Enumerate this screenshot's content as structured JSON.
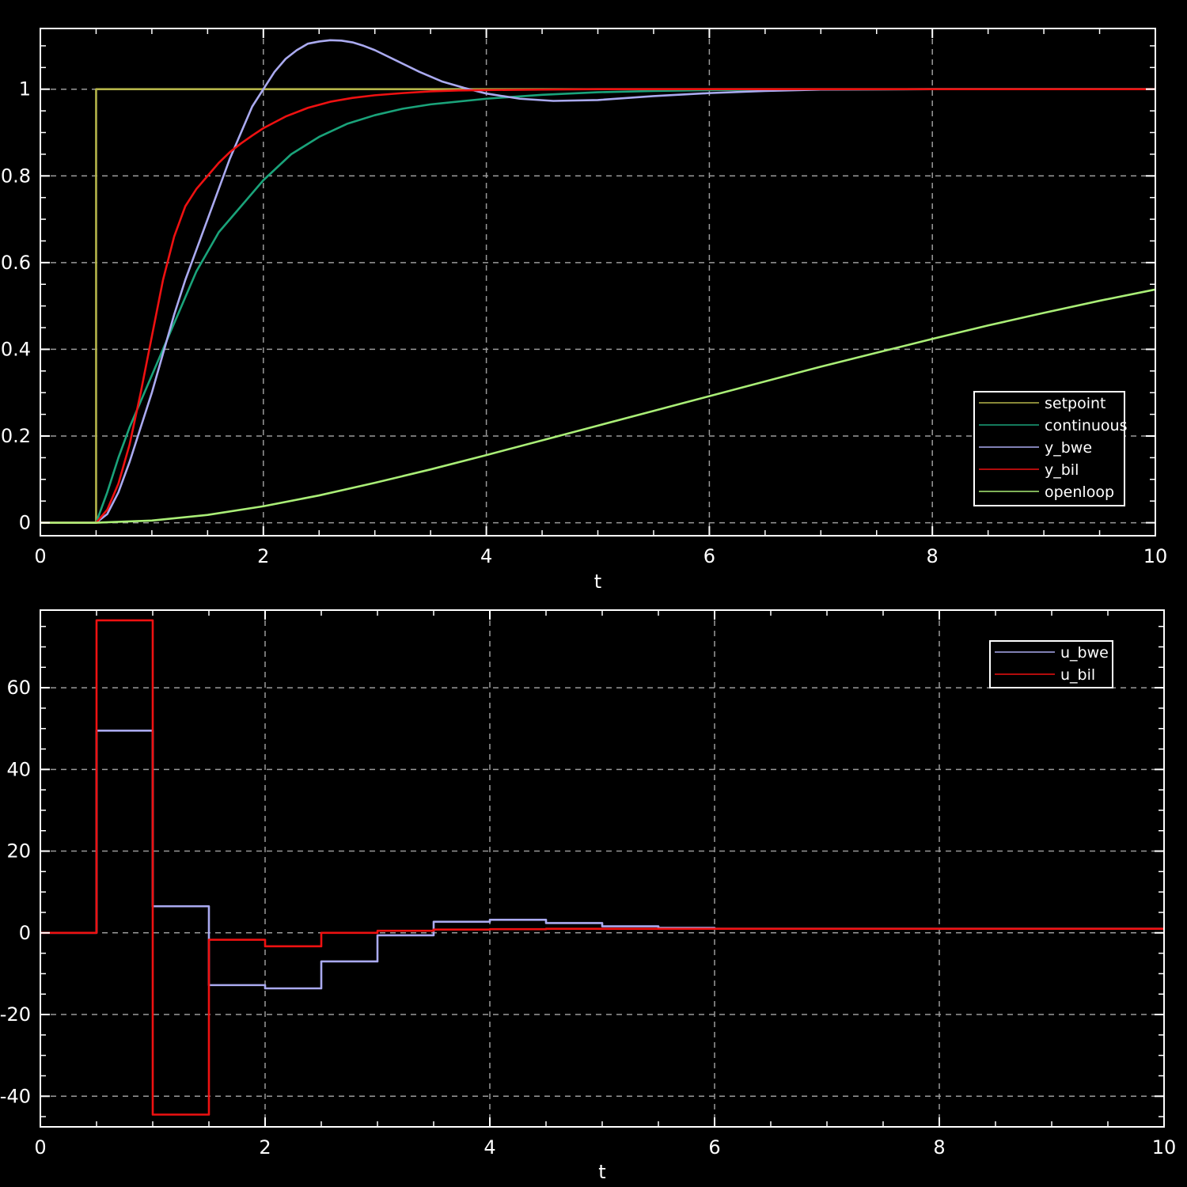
{
  "chart_data": [
    {
      "type": "line",
      "title": "",
      "xlabel": "t",
      "ylabel": "",
      "xlim": [
        0,
        10
      ],
      "ylim": [
        -0.03,
        1.14
      ],
      "xticks": [
        "0",
        "2",
        "4",
        "6",
        "8",
        "10"
      ],
      "yticks": [
        "0",
        "0.2",
        "0.4",
        "0.6",
        "0.8",
        "1"
      ],
      "grid": true,
      "legend_position": "bottom-right",
      "series": [
        {
          "name": "setpoint",
          "color": "#b5b54a",
          "x": [
            0,
            0.5,
            0.5,
            10
          ],
          "y": [
            0,
            0,
            1,
            1
          ]
        },
        {
          "name": "continuous",
          "color": "#1aa37a",
          "x": [
            0,
            0.5,
            0.6,
            0.7,
            0.8,
            0.9,
            1.0,
            1.1,
            1.2,
            1.4,
            1.6,
            1.8,
            2.0,
            2.25,
            2.5,
            2.75,
            3.0,
            3.25,
            3.5,
            4.0,
            4.5,
            5.0,
            5.5,
            6.0,
            7.0,
            8.0,
            9.0,
            10.0
          ],
          "y": [
            0,
            0,
            0.07,
            0.15,
            0.22,
            0.28,
            0.34,
            0.4,
            0.46,
            0.58,
            0.67,
            0.73,
            0.79,
            0.85,
            0.89,
            0.92,
            0.94,
            0.955,
            0.965,
            0.978,
            0.987,
            0.993,
            0.996,
            0.998,
            0.999,
            1.0,
            1.0,
            1.0
          ]
        },
        {
          "name": "y_bwe",
          "color": "#aaaaf0",
          "x": [
            0,
            0.5,
            0.6,
            0.7,
            0.8,
            0.9,
            1.0,
            1.1,
            1.2,
            1.3,
            1.4,
            1.5,
            1.6,
            1.7,
            1.8,
            1.9,
            2.0,
            2.1,
            2.2,
            2.3,
            2.4,
            2.5,
            2.6,
            2.7,
            2.8,
            2.9,
            3.0,
            3.2,
            3.4,
            3.6,
            3.8,
            4.0,
            4.3,
            4.6,
            5.0,
            5.5,
            6.0,
            6.5,
            7.0,
            8.0,
            9.0,
            10.0
          ],
          "y": [
            0,
            0,
            0.02,
            0.07,
            0.14,
            0.22,
            0.3,
            0.39,
            0.48,
            0.56,
            0.63,
            0.7,
            0.77,
            0.84,
            0.9,
            0.96,
            1.0,
            1.04,
            1.07,
            1.09,
            1.105,
            1.11,
            1.113,
            1.112,
            1.108,
            1.1,
            1.09,
            1.065,
            1.04,
            1.018,
            1.003,
            0.99,
            0.978,
            0.973,
            0.975,
            0.984,
            0.991,
            0.996,
            0.999,
            1.0,
            1.0,
            1.0
          ]
        },
        {
          "name": "y_bil",
          "color": "#ee1111",
          "x": [
            0,
            0.5,
            0.6,
            0.7,
            0.8,
            0.9,
            1.0,
            1.1,
            1.2,
            1.3,
            1.4,
            1.5,
            1.6,
            1.7,
            1.8,
            1.9,
            2.0,
            2.2,
            2.4,
            2.6,
            2.8,
            3.0,
            3.25,
            3.5,
            3.75,
            4.0,
            4.5,
            5.0,
            6.0,
            8.0,
            10.0
          ],
          "y": [
            0,
            0,
            0.03,
            0.09,
            0.18,
            0.3,
            0.43,
            0.56,
            0.66,
            0.73,
            0.77,
            0.8,
            0.83,
            0.855,
            0.875,
            0.893,
            0.91,
            0.937,
            0.957,
            0.971,
            0.98,
            0.986,
            0.991,
            0.995,
            0.997,
            0.998,
            0.999,
            1.0,
            1.0,
            1.0,
            1.0
          ]
        },
        {
          "name": "openloop",
          "color": "#aaee77",
          "x": [
            0,
            0.5,
            1.0,
            1.5,
            2.0,
            2.5,
            3.0,
            3.5,
            4.0,
            4.5,
            5.0,
            5.5,
            6.0,
            6.5,
            7.0,
            7.5,
            8.0,
            8.5,
            9.0,
            9.5,
            10.0
          ],
          "y": [
            0,
            0,
            0.005,
            0.018,
            0.038,
            0.063,
            0.092,
            0.123,
            0.156,
            0.19,
            0.224,
            0.258,
            0.292,
            0.326,
            0.36,
            0.392,
            0.424,
            0.455,
            0.484,
            0.512,
            0.538
          ]
        }
      ]
    },
    {
      "type": "line",
      "title": "",
      "xlabel": "t",
      "ylabel": "",
      "xlim": [
        0,
        10
      ],
      "ylim": [
        -47.5,
        79
      ],
      "xticks": [
        "0",
        "2",
        "4",
        "6",
        "8",
        "10"
      ],
      "yticks": [
        "-40",
        "-20",
        "0",
        "20",
        "40",
        "60"
      ],
      "grid": true,
      "legend_position": "top-right",
      "series": [
        {
          "name": "u_bwe",
          "color": "#aaaaf0",
          "step": true,
          "x": [
            0,
            0.5,
            1.0,
            1.5,
            2.0,
            2.5,
            3.0,
            3.5,
            4.0,
            4.5,
            5.0,
            5.5,
            6.0,
            10.0
          ],
          "y": [
            0,
            49.5,
            6.5,
            -12.8,
            -13.6,
            -7.0,
            -0.6,
            2.7,
            3.2,
            2.4,
            1.6,
            1.2,
            1.0,
            1.0
          ]
        },
        {
          "name": "u_bil",
          "color": "#ee1111",
          "step": true,
          "x": [
            0,
            0.5,
            1.0,
            1.5,
            2.0,
            2.5,
            3.0,
            3.5,
            4.0,
            4.5,
            5.0,
            5.5,
            6.0,
            10.0
          ],
          "y": [
            0,
            76.5,
            -44.5,
            -1.7,
            -3.3,
            0,
            0.5,
            0.8,
            0.9,
            1.0,
            1.0,
            1.0,
            1.0,
            1.0
          ]
        }
      ]
    }
  ]
}
